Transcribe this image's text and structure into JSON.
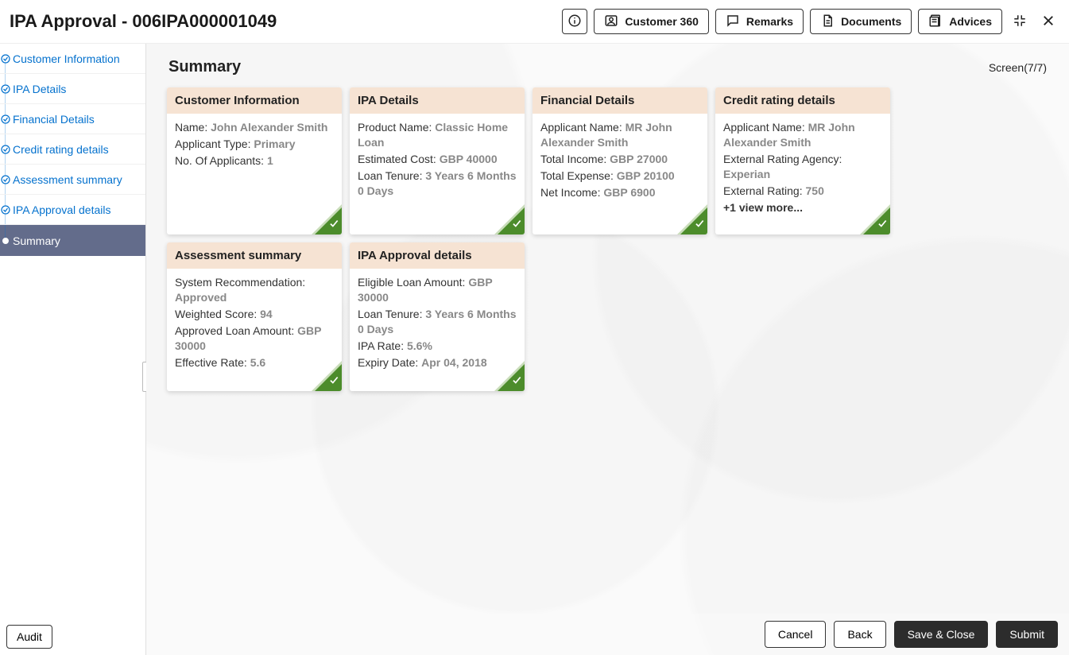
{
  "header": {
    "title": "IPA Approval - 006IPA000001049",
    "buttons": {
      "customer360": "Customer 360",
      "remarks": "Remarks",
      "documents": "Documents",
      "advices": "Advices"
    }
  },
  "sidebar": {
    "items": [
      {
        "label": "Customer Information",
        "state": "done"
      },
      {
        "label": "IPA Details",
        "state": "done"
      },
      {
        "label": "Financial Details",
        "state": "done"
      },
      {
        "label": "Credit rating details",
        "state": "done"
      },
      {
        "label": "Assessment summary",
        "state": "done"
      },
      {
        "label": "IPA Approval details",
        "state": "done"
      },
      {
        "label": "Summary",
        "state": "active"
      }
    ],
    "audit_label": "Audit"
  },
  "page": {
    "title": "Summary",
    "screen_label": "Screen(7/7)"
  },
  "cards": [
    {
      "title": "Customer Information",
      "rows": [
        {
          "label": "Name: ",
          "value": "John Alexander Smith"
        },
        {
          "label": "Applicant Type: ",
          "value": "Primary"
        },
        {
          "label": "No. Of Applicants: ",
          "value": "1"
        }
      ],
      "status": "ok"
    },
    {
      "title": "IPA Details",
      "rows": [
        {
          "label": "Product Name: ",
          "value": "Classic Home Loan"
        },
        {
          "label": "Estimated Cost: ",
          "value": "GBP 40000"
        },
        {
          "label": "Loan Tenure: ",
          "value": "3 Years 6 Months 0 Days"
        }
      ],
      "status": "ok"
    },
    {
      "title": "Financial Details",
      "rows": [
        {
          "label": "Applicant Name: ",
          "value": "MR John Alexander Smith"
        },
        {
          "label": "Total Income: ",
          "value": "GBP 27000"
        },
        {
          "label": "Total Expense: ",
          "value": "GBP 20100"
        },
        {
          "label": "Net Income: ",
          "value": "GBP 6900"
        }
      ],
      "status": "ok"
    },
    {
      "title": "Credit rating details",
      "rows": [
        {
          "label": "Applicant Name: ",
          "value": "MR John Alexander Smith"
        },
        {
          "label": "External Rating Agency: ",
          "value": "Experian"
        },
        {
          "label": "External Rating: ",
          "value": "750"
        }
      ],
      "more": "+1 view more...",
      "status": "ok"
    },
    {
      "title": "Assessment summary",
      "rows": [
        {
          "label": "System Recommendation: ",
          "value": "Approved"
        },
        {
          "label": "Weighted Score: ",
          "value": "94"
        },
        {
          "label": "Approved Loan Amount: ",
          "value": "GBP 30000"
        },
        {
          "label": "Effective Rate: ",
          "value": "5.6"
        }
      ],
      "status": "ok"
    },
    {
      "title": "IPA Approval details",
      "rows": [
        {
          "label": "Eligible Loan Amount: ",
          "value": "GBP 30000"
        },
        {
          "label": "Loan Tenure: ",
          "value": "3 Years 6 Months 0 Days"
        },
        {
          "label": "IPA Rate: ",
          "value": "5.6%"
        },
        {
          "label": "Expiry Date: ",
          "value": "Apr 04, 2018"
        }
      ],
      "status": "ok"
    }
  ],
  "footer": {
    "cancel": "Cancel",
    "back": "Back",
    "save_close": "Save & Close",
    "submit": "Submit"
  },
  "style": {
    "accent_blue": "#0572ce",
    "sidebar_active_bg": "#636c8b",
    "card_head_bg": "#f6e3d3",
    "corner_color": "#4c8c2b",
    "corner_border_color": "#c9ddba",
    "value_color": "#888888",
    "dark_btn_bg": "#2c2c2c",
    "page_bg": "#fafafa"
  }
}
